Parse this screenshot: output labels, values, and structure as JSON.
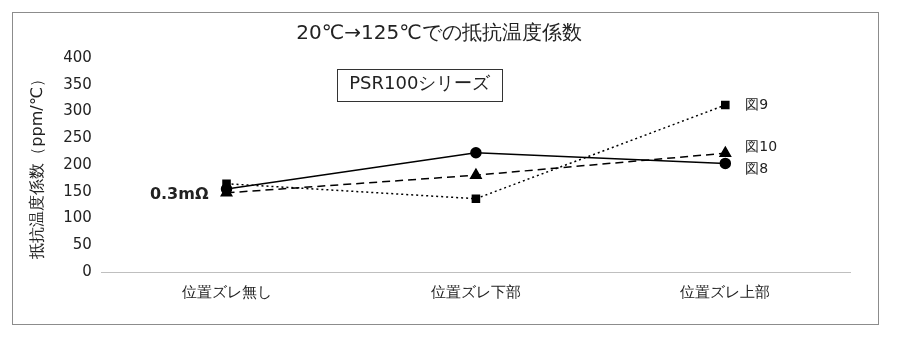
{
  "chart_data": {
    "type": "line",
    "title": "20℃→125℃での抵抗温度係数",
    "y_label": "抵抗温度係数（ppm/℃）",
    "categories": [
      "位置ズレ無し",
      "位置ズレ下部",
      "位置ズレ上部"
    ],
    "series": [
      {
        "name": "図8",
        "color": "#000000",
        "marker": "circle",
        "line_style": "solid",
        "values": [
          155,
          223,
          203
        ]
      },
      {
        "name": "図9",
        "color": "#000000",
        "marker": "square",
        "line_style": "dotted",
        "values": [
          165,
          137,
          312
        ]
      },
      {
        "name": "図10",
        "color": "#000000",
        "marker": "triangle",
        "line_style": "dashed",
        "values": [
          148,
          181,
          222
        ]
      }
    ],
    "annotations": [
      "PSR100シリーズ",
      "0.3mΩ"
    ],
    "ylim": [
      0,
      400
    ],
    "yticks": [
      0,
      50,
      100,
      150,
      200,
      250,
      300,
      350,
      400
    ],
    "grid": false,
    "legend": "right"
  }
}
